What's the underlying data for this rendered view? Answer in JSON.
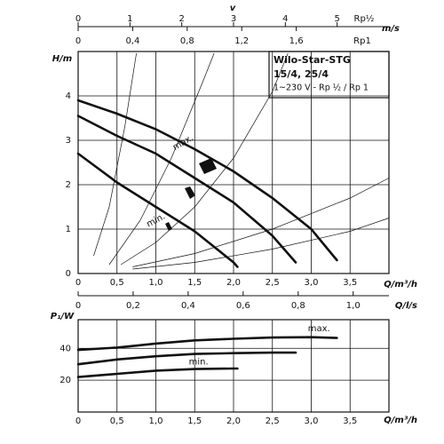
{
  "chart_data": [
    {
      "type": "line",
      "title": "Wilo-Star-STG",
      "subtitle": "15/4, 25/4",
      "note": "1~230 V - Rp ½ / Rp 1",
      "ylabel": "H/m",
      "xlabel": "Q/m³/h",
      "xlim": [
        0,
        4
      ],
      "ylim": [
        0,
        5
      ],
      "xticks": [
        0,
        {
          "value": 0.5,
          "label": "0,5"
        },
        {
          "value": 1,
          "label": "1,0"
        },
        {
          "value": 1.5,
          "label": "1,5"
        },
        {
          "value": 2,
          "label": "2,0"
        },
        {
          "value": 2.5,
          "label": "2,5"
        },
        {
          "value": 3,
          "label": "3,0"
        },
        {
          "value": 3.5,
          "label": "3,5"
        }
      ],
      "yticks": [
        0,
        1,
        2,
        3,
        4
      ],
      "grid": true,
      "series": [
        {
          "name": "max.",
          "color": "#111111",
          "x": [
            0,
            0.5,
            1,
            1.5,
            2,
            2.5,
            3,
            3.33
          ],
          "values": [
            3.9,
            3.6,
            3.25,
            2.8,
            2.3,
            1.7,
            1.0,
            0.3
          ]
        },
        {
          "color": "#111111",
          "x": [
            0,
            0.5,
            1,
            1.5,
            2,
            2.5,
            2.8
          ],
          "values": [
            3.55,
            3.1,
            2.7,
            2.15,
            1.6,
            0.85,
            0.25
          ]
        },
        {
          "name": "min.",
          "color": "#111111",
          "x": [
            0,
            0.5,
            1,
            1.5,
            2,
            2.05
          ],
          "values": [
            2.7,
            2.05,
            1.5,
            0.95,
            0.25,
            0.15
          ]
        }
      ],
      "system_curves": [
        {
          "x": [
            0.2,
            0.4,
            0.6,
            0.75
          ],
          "values": [
            0.4,
            1.5,
            3.3,
            4.96
          ]
        },
        {
          "x": [
            0.4,
            0.8,
            1.2,
            1.6,
            1.75
          ],
          "values": [
            0.2,
            1.2,
            2.6,
            4.3,
            4.96
          ]
        },
        {
          "x": [
            0.55,
            1,
            1.5,
            2,
            2.5,
            2.7
          ],
          "values": [
            0.2,
            0.7,
            1.5,
            2.6,
            4.1,
            4.96
          ]
        },
        {
          "x": [
            0.7,
            1.5,
            2.5,
            3.5,
            4
          ],
          "values": [
            0.15,
            0.45,
            1.0,
            1.7,
            2.15
          ]
        },
        {
          "x": [
            0.7,
            1.5,
            2.5,
            3.5,
            4
          ],
          "values": [
            0.1,
            0.25,
            0.55,
            0.95,
            1.25
          ]
        }
      ],
      "top_axes": [
        {
          "label": "v",
          "unit": "m/s",
          "pipe": "Rp½",
          "xlim": [
            0,
            6
          ],
          "xticks": [
            0,
            1,
            2,
            3,
            4,
            5
          ]
        },
        {
          "pipe": "Rp1",
          "xlim": [
            0,
            2.28
          ],
          "xticks": [
            0,
            {
              "value": 0.4,
              "label": "0,4"
            },
            {
              "value": 0.8,
              "label": "0,8"
            },
            {
              "value": 1.2,
              "label": "1,2"
            },
            {
              "value": 1.6,
              "label": "1,6"
            }
          ]
        }
      ],
      "flow_axis": {
        "label": "Q/l/s",
        "xlim": [
          0,
          1.13
        ],
        "xticks": [
          0,
          {
            "value": 0.2,
            "label": "0,2"
          },
          {
            "value": 0.4,
            "label": "0,4"
          },
          {
            "value": 0.6,
            "label": "0,6"
          },
          {
            "value": 0.8,
            "label": "0,8"
          },
          {
            "value": 1,
            "label": "1,0"
          }
        ]
      }
    },
    {
      "type": "line",
      "ylabel": "P₁/W",
      "xlabel": "Q/m³/h",
      "xlim": [
        0,
        4
      ],
      "ylim": [
        0,
        58
      ],
      "xticks": [
        0,
        {
          "value": 0.5,
          "label": "0,5"
        },
        {
          "value": 1,
          "label": "1,0"
        },
        {
          "value": 1.5,
          "label": "1,5"
        },
        {
          "value": 2,
          "label": "2,0"
        },
        {
          "value": 2.5,
          "label": "2,5"
        },
        {
          "value": 3,
          "label": "3,0"
        },
        {
          "value": 3.5,
          "label": "3,5"
        }
      ],
      "yticks": [
        20,
        40
      ],
      "grid": true,
      "series": [
        {
          "name": "max.",
          "color": "#111111",
          "x": [
            0,
            0.5,
            1,
            1.5,
            2,
            2.5,
            3,
            3.33
          ],
          "values": [
            39,
            40.5,
            43,
            45,
            46,
            46.8,
            47,
            46.5
          ]
        },
        {
          "color": "#111111",
          "x": [
            0,
            0.5,
            1,
            1.5,
            2,
            2.5,
            2.8
          ],
          "values": [
            30,
            33,
            35,
            36.5,
            37,
            37.3,
            37.3
          ]
        },
        {
          "name": "min.",
          "color": "#111111",
          "x": [
            0,
            0.5,
            1,
            1.5,
            2,
            2.05
          ],
          "values": [
            22,
            24,
            26,
            27,
            27.3,
            27.3
          ]
        }
      ]
    }
  ]
}
